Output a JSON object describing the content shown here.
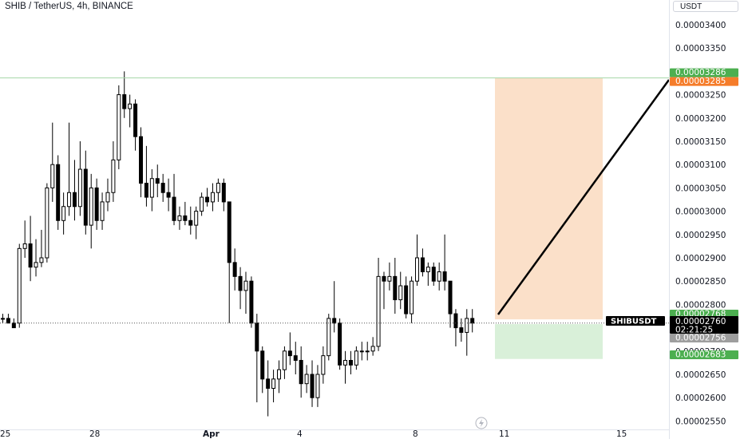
{
  "header": {
    "title": "SHIB / TetherUS, 4h, BINANCE",
    "currency": "USDT"
  },
  "price_axis": {
    "ticks": [
      "0.00003400",
      "0.00003350",
      "0.00003300",
      "0.00003250",
      "0.00003200",
      "0.00003150",
      "0.00003100",
      "0.00003050",
      "0.00003000",
      "0.00002950",
      "0.00002900",
      "0.00002850",
      "0.00002800",
      "0.00002750",
      "0.00002700",
      "0.00002650",
      "0.00002600",
      "0.00002550"
    ]
  },
  "time_axis": {
    "labels": [
      "25",
      "28",
      "Apr",
      "4",
      "8",
      "11",
      "15"
    ]
  },
  "price_labels": {
    "target_top": "0.00003286",
    "target_entry": "0.00003285",
    "entry_green": "0.00002768",
    "symbol": "SHIBUSDT",
    "last_price": "0.00002760",
    "countdown": "02:21:25",
    "stop_grey": "0.00002756",
    "stop_green": "0.00002683"
  },
  "colors": {
    "up_candle": "#ffffff",
    "down_candle": "#000000",
    "target_zone": "#fbe0c9",
    "stop_zone": "#d9f0d9",
    "green_label": "#4caf50",
    "orange_label": "#f57c2a",
    "grey_label": "#9e9e9e",
    "dark_label": "#000000"
  },
  "chart_data": {
    "type": "candlestick",
    "symbol": "SHIB / TetherUS",
    "interval": "4h",
    "exchange": "BINANCE",
    "ylim": [
      2.5e-05,
      3.425e-05
    ],
    "last_price": 2.76e-05,
    "target_price": 3.286e-05,
    "entry_price": 2.768e-05,
    "stop_price": 2.683e-05,
    "candles": [
      [
        2.77e-05,
        2.78e-05,
        2.76e-05,
        2.77e-05
      ],
      [
        2.77e-05,
        2.78e-05,
        2.76e-05,
        2.76e-05
      ],
      [
        2.76e-05,
        2.77e-05,
        2.75e-05,
        2.75e-05
      ],
      [
        2.76e-05,
        2.93e-05,
        2.75e-05,
        2.92e-05
      ],
      [
        2.92e-05,
        2.98e-05,
        2.9e-05,
        2.93e-05
      ],
      [
        2.93e-05,
        2.99e-05,
        2.85e-05,
        2.88e-05
      ],
      [
        2.88e-05,
        2.94e-05,
        2.86e-05,
        2.89e-05
      ],
      [
        2.89e-05,
        2.96e-05,
        2.88e-05,
        2.9e-05
      ],
      [
        2.9e-05,
        3.06e-05,
        2.89e-05,
        3.05e-05
      ],
      [
        3.05e-05,
        3.19e-05,
        3.02e-05,
        3.1e-05
      ],
      [
        3.1e-05,
        3.12e-05,
        2.96e-05,
        2.98e-05
      ],
      [
        2.98e-05,
        3.04e-05,
        2.95e-05,
        3.01e-05
      ],
      [
        3.01e-05,
        3.19e-05,
        2.99e-05,
        3.04e-05
      ],
      [
        3.04e-05,
        3.11e-05,
        2.98e-05,
        3.01e-05
      ],
      [
        3.01e-05,
        3.15e-05,
        2.99e-05,
        3.09e-05
      ],
      [
        3.09e-05,
        3.13e-05,
        2.95e-05,
        2.97e-05
      ],
      [
        2.97e-05,
        3.08e-05,
        2.92e-05,
        3.05e-05
      ],
      [
        3.05e-05,
        3.07e-05,
        2.96e-05,
        2.98e-05
      ],
      [
        2.98e-05,
        3.04e-05,
        2.96e-05,
        3.02e-05
      ],
      [
        3.02e-05,
        3.07e-05,
        3e-05,
        3.04e-05
      ],
      [
        3.04e-05,
        3.15e-05,
        3.02e-05,
        3.11e-05
      ],
      [
        3.11e-05,
        3.27e-05,
        3.09e-05,
        3.25e-05
      ],
      [
        3.25e-05,
        3.3e-05,
        3.2e-05,
        3.22e-05
      ],
      [
        3.22e-05,
        3.25e-05,
        3.18e-05,
        3.23e-05
      ],
      [
        3.23e-05,
        3.24e-05,
        3.13e-05,
        3.16e-05
      ],
      [
        3.16e-05,
        3.18e-05,
        3.03e-05,
        3.06e-05
      ],
      [
        3.06e-05,
        3.14e-05,
        3.01e-05,
        3.03e-05
      ],
      [
        3.03e-05,
        3.09e-05,
        3e-05,
        3.07e-05
      ],
      [
        3.07e-05,
        3.1e-05,
        3.03e-05,
        3.06e-05
      ],
      [
        3.06e-05,
        3.08e-05,
        3.02e-05,
        3.04e-05
      ],
      [
        3.04e-05,
        3.07e-05,
        3e-05,
        3.03e-05
      ],
      [
        3.03e-05,
        3.08e-05,
        2.97e-05,
        2.98e-05
      ],
      [
        2.98e-05,
        3.01e-05,
        2.96e-05,
        2.99e-05
      ],
      [
        2.99e-05,
        3.02e-05,
        2.97e-05,
        2.98e-05
      ],
      [
        2.98e-05,
        3.01e-05,
        2.95e-05,
        2.97e-05
      ],
      [
        2.97e-05,
        3.01e-05,
        2.94e-05,
        3e-05
      ],
      [
        3e-05,
        3.04e-05,
        2.99e-05,
        3.03e-05
      ],
      [
        3.03e-05,
        3.05e-05,
        3.01e-05,
        3.02e-05
      ],
      [
        3.02e-05,
        3.06e-05,
        3e-05,
        3.04e-05
      ],
      [
        3.04e-05,
        3.07e-05,
        3.02e-05,
        3.06e-05
      ],
      [
        3.06e-05,
        3.07e-05,
        3e-05,
        3.02e-05
      ],
      [
        3.02e-05,
        3.02e-05,
        2.76e-05,
        2.89e-05
      ],
      [
        2.89e-05,
        2.92e-05,
        2.83e-05,
        2.86e-05
      ],
      [
        2.86e-05,
        2.88e-05,
        2.79e-05,
        2.83e-05
      ],
      [
        2.83e-05,
        2.87e-05,
        2.78e-05,
        2.85e-05
      ],
      [
        2.85e-05,
        2.86e-05,
        2.75e-05,
        2.76e-05
      ],
      [
        2.76e-05,
        2.78e-05,
        2.59e-05,
        2.7e-05
      ],
      [
        2.7e-05,
        2.71e-05,
        2.61e-05,
        2.64e-05
      ],
      [
        2.64e-05,
        2.68e-05,
        2.56e-05,
        2.62e-05
      ],
      [
        2.62e-05,
        2.66e-05,
        2.59e-05,
        2.64e-05
      ],
      [
        2.64e-05,
        2.68e-05,
        2.61e-05,
        2.66e-05
      ],
      [
        2.66e-05,
        2.71e-05,
        2.64e-05,
        2.7e-05
      ],
      [
        2.7e-05,
        2.74e-05,
        2.67e-05,
        2.69e-05
      ],
      [
        2.69e-05,
        2.72e-05,
        2.65e-05,
        2.68e-05
      ],
      [
        2.68e-05,
        2.71e-05,
        2.6e-05,
        2.63e-05
      ],
      [
        2.63e-05,
        2.67e-05,
        2.61e-05,
        2.65e-05
      ],
      [
        2.65e-05,
        2.68e-05,
        2.58e-05,
        2.6e-05
      ],
      [
        2.6e-05,
        2.67e-05,
        2.58e-05,
        2.65e-05
      ],
      [
        2.65e-05,
        2.71e-05,
        2.63e-05,
        2.69e-05
      ],
      [
        2.69e-05,
        2.78e-05,
        2.68e-05,
        2.77e-05
      ],
      [
        2.77e-05,
        2.85e-05,
        2.74e-05,
        2.76e-05
      ],
      [
        2.76e-05,
        2.77e-05,
        2.66e-05,
        2.67e-05
      ],
      [
        2.67e-05,
        2.7e-05,
        2.63e-05,
        2.68e-05
      ],
      [
        2.68e-05,
        2.7e-05,
        2.65e-05,
        2.67e-05
      ],
      [
        2.67e-05,
        2.71e-05,
        2.66e-05,
        2.7e-05
      ],
      [
        2.7e-05,
        2.72e-05,
        2.68e-05,
        2.7e-05
      ],
      [
        2.7e-05,
        2.72e-05,
        2.68e-05,
        2.7e-05
      ],
      [
        2.7e-05,
        2.73e-05,
        2.69e-05,
        2.71e-05
      ],
      [
        2.71e-05,
        2.9e-05,
        2.7e-05,
        2.86e-05
      ],
      [
        2.86e-05,
        2.87e-05,
        2.79e-05,
        2.85e-05
      ],
      [
        2.85e-05,
        2.89e-05,
        2.83e-05,
        2.86e-05
      ],
      [
        2.86e-05,
        2.9e-05,
        2.78e-05,
        2.81e-05
      ],
      [
        2.81e-05,
        2.87e-05,
        2.79e-05,
        2.84e-05
      ],
      [
        2.84e-05,
        2.86e-05,
        2.77e-05,
        2.78e-05
      ],
      [
        2.78e-05,
        2.86e-05,
        2.76e-05,
        2.85e-05
      ],
      [
        2.85e-05,
        2.95e-05,
        2.84e-05,
        2.9e-05
      ],
      [
        2.9e-05,
        2.92e-05,
        2.86e-05,
        2.87e-05
      ],
      [
        2.87e-05,
        2.89e-05,
        2.84e-05,
        2.88e-05
      ],
      [
        2.88e-05,
        2.89e-05,
        2.84e-05,
        2.85e-05
      ],
      [
        2.85e-05,
        2.89e-05,
        2.83e-05,
        2.87e-05
      ],
      [
        2.87e-05,
        2.95e-05,
        2.83e-05,
        2.85e-05
      ],
      [
        2.85e-05,
        2.85e-05,
        2.75e-05,
        2.78e-05
      ],
      [
        2.78e-05,
        2.79e-05,
        2.71e-05,
        2.75e-05
      ],
      [
        2.75e-05,
        2.77e-05,
        2.72e-05,
        2.74e-05
      ],
      [
        2.74e-05,
        2.79e-05,
        2.69e-05,
        2.77e-05
      ],
      [
        2.77e-05,
        2.79e-05,
        2.74e-05,
        2.76e-05
      ]
    ]
  }
}
